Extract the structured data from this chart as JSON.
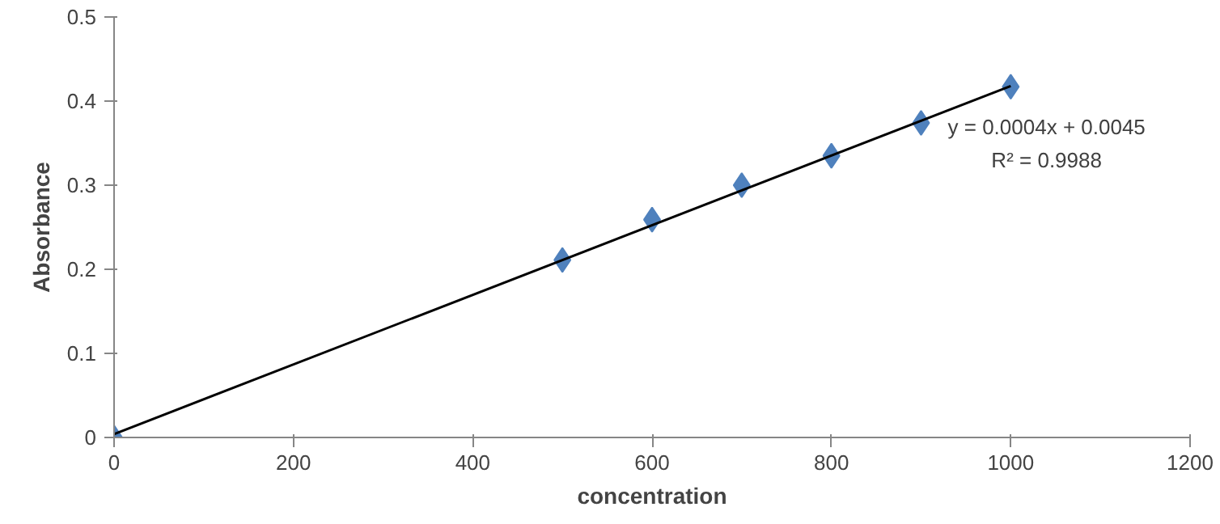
{
  "chart_data": {
    "type": "scatter",
    "xlabel": "concentration",
    "ylabel": "Absorbance",
    "xlim": [
      0,
      1200
    ],
    "xticks": [
      0,
      200,
      400,
      600,
      800,
      1000,
      1200
    ],
    "ylim": [
      0,
      0.5
    ],
    "yticks": [
      0,
      0.1,
      0.2,
      0.3,
      0.4,
      0.5
    ],
    "grid": false,
    "marker": "diamond",
    "annotations": [
      "y = 0.0004x + 0.0045",
      "R² = 0.9988"
    ],
    "series": [
      {
        "color": "#4f81bd",
        "x": [
          0,
          500,
          600,
          700,
          800,
          900,
          1000
        ],
        "values": [
          0,
          0.211,
          0.259,
          0.3,
          0.335,
          0.374,
          0.417
        ]
      },
      {
        "type": "line",
        "color": "#000000",
        "marker": "none",
        "x": [
          0,
          1000
        ],
        "values": [
          0.004,
          0.418
        ]
      }
    ]
  }
}
